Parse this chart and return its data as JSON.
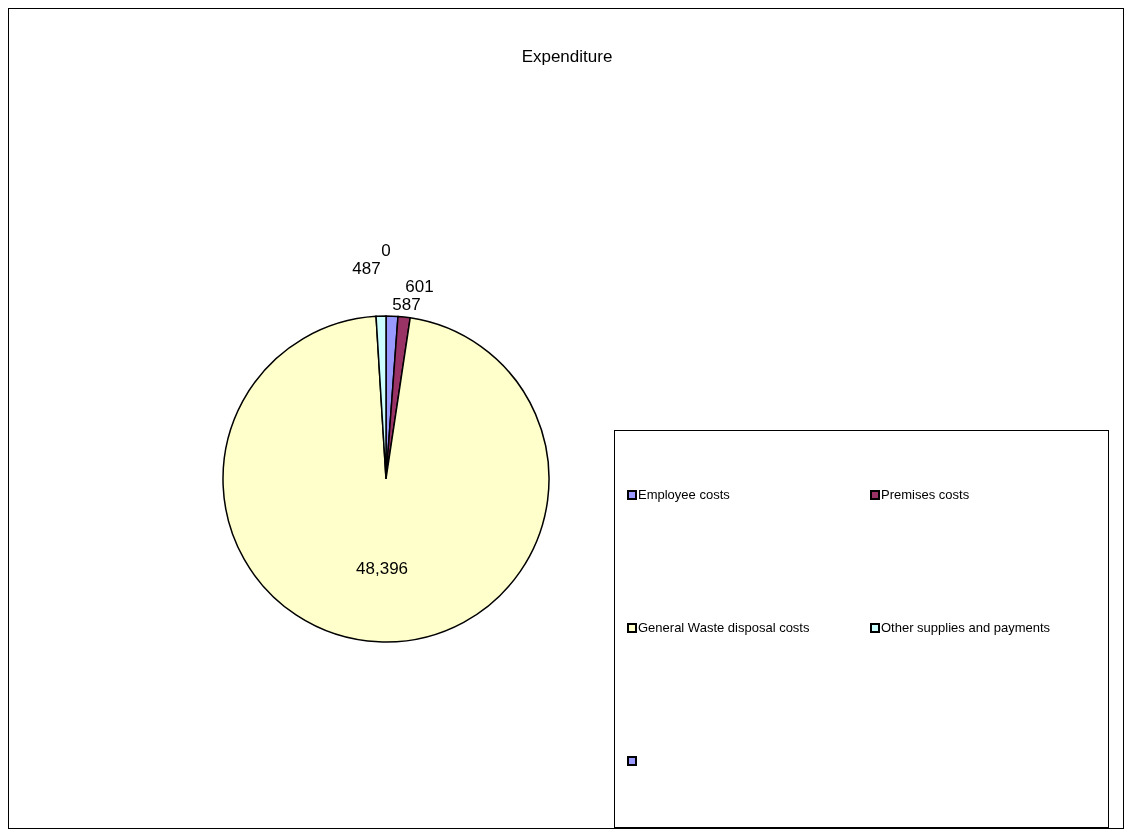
{
  "chart_data": {
    "type": "pie",
    "title": "Expenditure",
    "categories": [
      "Employee costs",
      "Premises costs",
      "General Waste disposal costs",
      "Other supplies and payments",
      null
    ],
    "values": [
      587,
      601,
      48396,
      487,
      0
    ],
    "colors": [
      "#9999ff",
      "#993366",
      "#ffffcc",
      "#ccffff",
      "#9999ff"
    ],
    "value_labels": [
      "587",
      "601",
      "48,396",
      "487",
      "0"
    ],
    "legend": "bottom right"
  }
}
